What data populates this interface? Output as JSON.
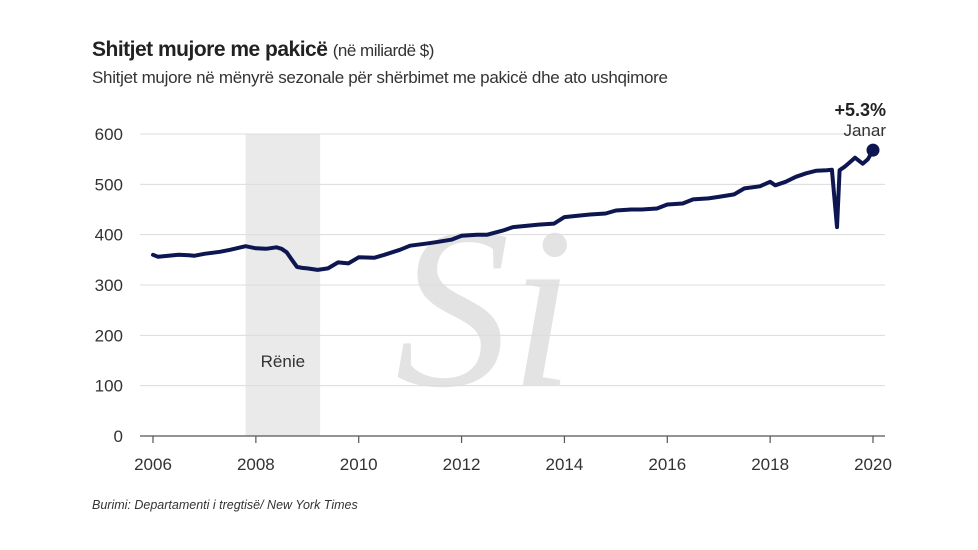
{
  "header": {
    "title": "Shitjet mujore me pakicë",
    "unit": "(në miliardë $)",
    "subtitle": "Shitjet mujore në mënyrë sezonale për shërbimet me pakicë dhe ato ushqimore"
  },
  "source": "Burimi: Departamenti i tregtisë/ New York Times",
  "watermark": "Si",
  "chart_data": {
    "type": "line",
    "title": "Shitjet mujore me pakicë",
    "xlabel": "",
    "ylabel": "në miliardë $",
    "xlim": [
      2006,
      2020
    ],
    "ylim": [
      0,
      600
    ],
    "grid": true,
    "x_ticks": [
      2006,
      2008,
      2010,
      2012,
      2014,
      2016,
      2018,
      2020
    ],
    "y_ticks": [
      0,
      100,
      200,
      300,
      400,
      500,
      600
    ],
    "colors": {
      "line": "#0d1650",
      "shade": "#e6e6e6",
      "grid": "#dcdcdc"
    },
    "shaded_region": {
      "label": "Rënie",
      "x": [
        2007.8,
        2009.25
      ]
    },
    "annotation": {
      "value": "+5.3%",
      "label": "Janar"
    },
    "series": [
      {
        "name": "Shitjet mujore",
        "x": [
          2006.0,
          2006.1,
          2006.3,
          2006.5,
          2006.7,
          2006.8,
          2007.0,
          2007.3,
          2007.5,
          2007.8,
          2008.0,
          2008.2,
          2008.4,
          2008.5,
          2008.6,
          2008.7,
          2008.8,
          2008.9,
          2009.0,
          2009.2,
          2009.4,
          2009.6,
          2009.8,
          2010.0,
          2010.3,
          2010.5,
          2010.8,
          2011.0,
          2011.3,
          2011.5,
          2011.8,
          2012.0,
          2012.3,
          2012.5,
          2012.8,
          2013.0,
          2013.3,
          2013.5,
          2013.8,
          2014.0,
          2014.3,
          2014.5,
          2014.8,
          2015.0,
          2015.3,
          2015.5,
          2015.8,
          2016.0,
          2016.3,
          2016.5,
          2016.8,
          2017.0,
          2017.3,
          2017.5,
          2017.8,
          2018.0,
          2018.1,
          2018.3,
          2018.5,
          2018.7,
          2018.9,
          2019.1,
          2019.2,
          2019.3,
          2019.35,
          2019.45,
          2019.65,
          2019.8,
          2019.9,
          2020.0
        ],
        "y": [
          360,
          356,
          358,
          360,
          359,
          358,
          362,
          366,
          370,
          377,
          373,
          372,
          375,
          372,
          365,
          350,
          336,
          334,
          333,
          330,
          333,
          345,
          343,
          355,
          354,
          360,
          370,
          378,
          382,
          385,
          390,
          398,
          400,
          400,
          408,
          415,
          418,
          420,
          422,
          435,
          438,
          440,
          442,
          448,
          450,
          450,
          452,
          460,
          462,
          470,
          472,
          475,
          480,
          492,
          496,
          505,
          498,
          505,
          515,
          522,
          527,
          528,
          529,
          415,
          528,
          535,
          553,
          541,
          550,
          568
        ]
      }
    ]
  }
}
